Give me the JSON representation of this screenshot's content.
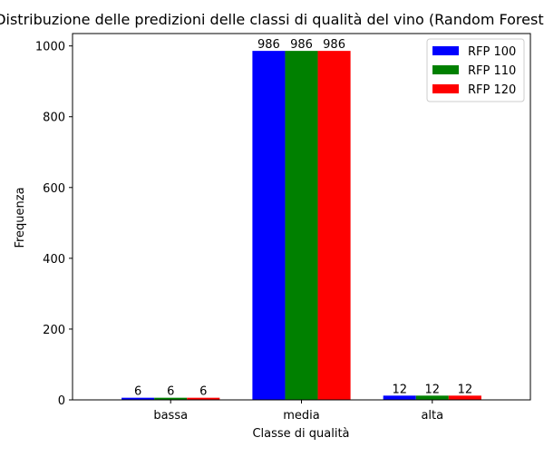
{
  "chart_data": {
    "type": "bar",
    "title": "Distribuzione delle predizioni delle classi di qualità del vino (Random Forest)",
    "xlabel": "Classe di qualità",
    "ylabel": "Frequenza",
    "categories": [
      "bassa",
      "media",
      "alta"
    ],
    "series": [
      {
        "name": "RFP 100",
        "color": "#0000ff",
        "values": [
          6,
          986,
          12
        ]
      },
      {
        "name": "RFP 110",
        "color": "#008000",
        "values": [
          6,
          986,
          12
        ]
      },
      {
        "name": "RFP 120",
        "color": "#ff0000",
        "values": [
          6,
          986,
          12
        ]
      }
    ],
    "ylim": [
      0,
      1035
    ],
    "yticks": [
      0,
      200,
      400,
      600,
      800,
      1000
    ],
    "legend_position": "top-right",
    "grid": false
  }
}
